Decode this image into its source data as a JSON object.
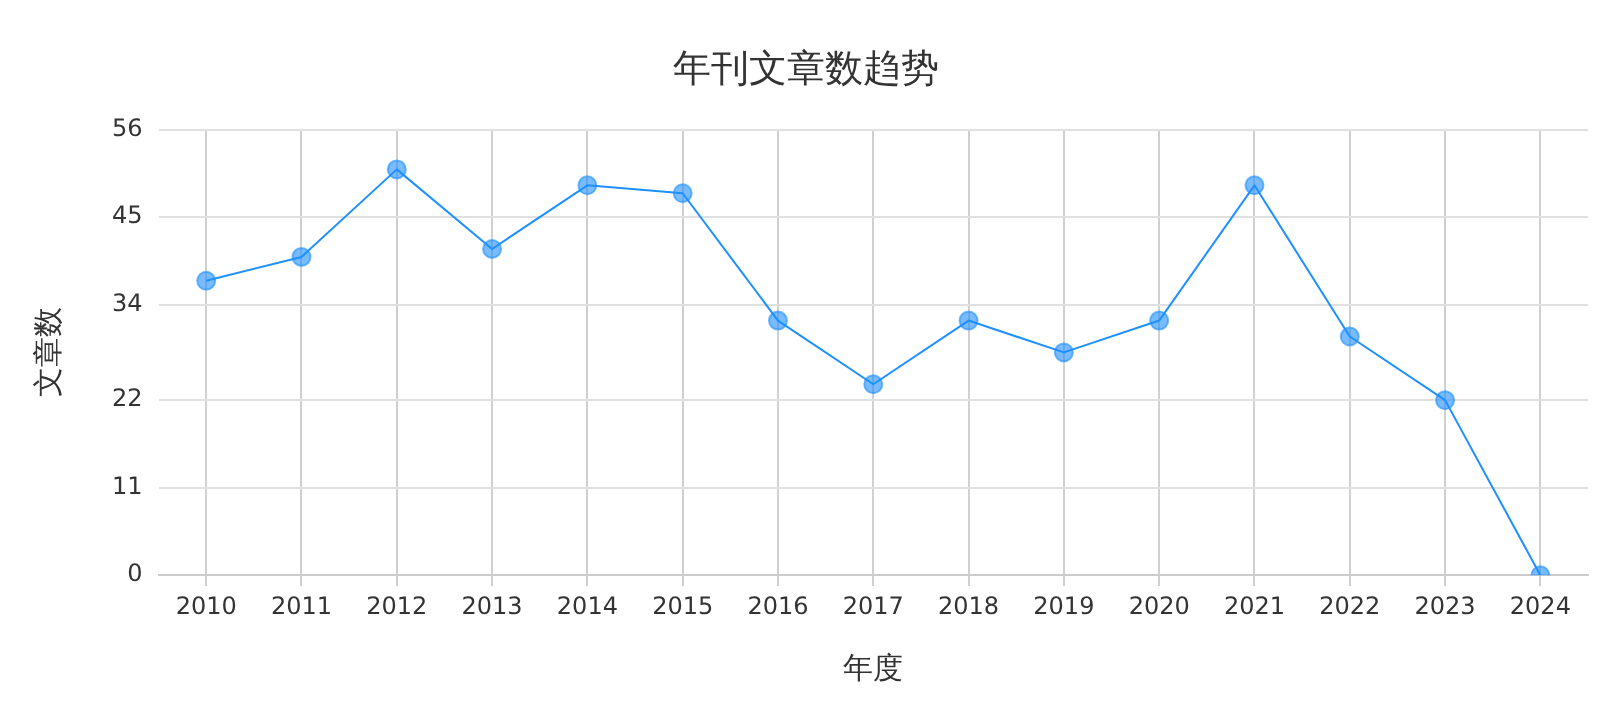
{
  "chart_data": {
    "type": "line",
    "title": "年刊文章数趋势",
    "xlabel": "年度",
    "ylabel": "文章数",
    "categories": [
      "2010",
      "2011",
      "2012",
      "2013",
      "2014",
      "2015",
      "2016",
      "2017",
      "2018",
      "2019",
      "2020",
      "2021",
      "2022",
      "2023",
      "2024"
    ],
    "series": [
      {
        "color": "#1e90ff",
        "values": [
          37,
          40,
          51,
          41,
          49,
          48,
          32,
          24,
          32,
          28,
          32,
          49,
          30,
          22,
          0
        ]
      }
    ],
    "ylim": [
      0,
      56
    ],
    "yticks": [
      0,
      11,
      22,
      34,
      45,
      56
    ],
    "grid": true,
    "legend": false,
    "marker": "circle",
    "line_style": "solid"
  }
}
